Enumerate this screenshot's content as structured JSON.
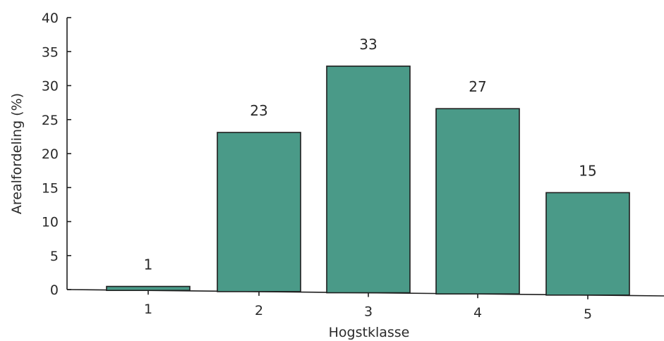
{
  "chart_data": {
    "type": "bar",
    "title": "",
    "xlabel": "Hogstklasse",
    "ylabel": "Arealfordeling (%)",
    "categories": [
      "1",
      "2",
      "3",
      "4",
      "5"
    ],
    "values": [
      0.5,
      23.2,
      33,
      26.8,
      14.5
    ],
    "data_labels": [
      "1",
      "23",
      "33",
      "27",
      "15"
    ],
    "ylim": [
      0,
      40
    ],
    "yticks": [
      "0",
      "5",
      "10",
      "15",
      "20",
      "25",
      "30",
      "35",
      "40"
    ],
    "grid": false,
    "legend": "none",
    "bar_color": "#4a9a88"
  }
}
